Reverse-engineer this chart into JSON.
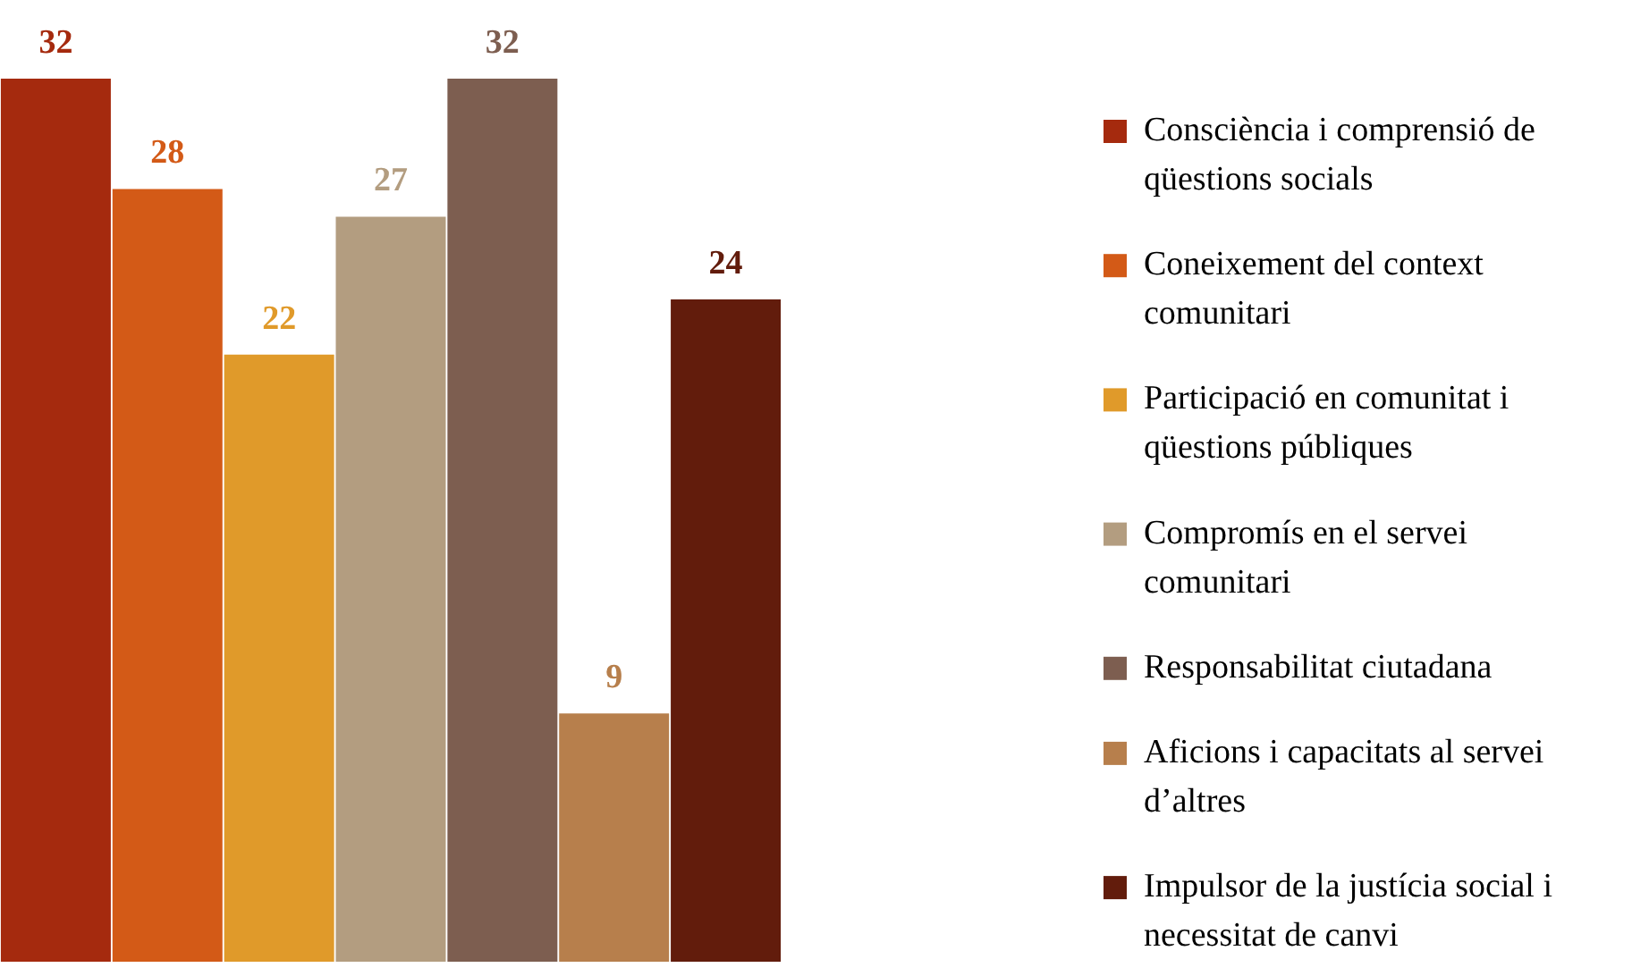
{
  "chart_data": {
    "type": "bar",
    "categories": [
      null
    ],
    "series": [
      {
        "name": "Consciència i comprensió de qüestions socials",
        "color": "#a52a0e",
        "values": [
          32
        ]
      },
      {
        "name": "Coneixement del context comunitari",
        "color": "#d35a17",
        "values": [
          28
        ]
      },
      {
        "name": "Participació en comunitat i qüestions públiques",
        "color": "#e09a2a",
        "values": [
          22
        ]
      },
      {
        "name": "Compromís en el servei comunitari",
        "color": "#b39d80",
        "values": [
          27
        ]
      },
      {
        "name": "Responsabilitat ciutadana",
        "color": "#7d5e50",
        "values": [
          32
        ]
      },
      {
        "name": "Aficions i capacitats al servei d’altres",
        "color": "#b77f4c",
        "values": [
          9
        ]
      },
      {
        "name": "Impulsor de la justícia social i necessitat de canvi",
        "color": "#621c0c",
        "values": [
          24
        ]
      }
    ],
    "ylim": [
      0,
      32
    ],
    "data_labels": true,
    "legend": "right",
    "tick_labels": false,
    "grid": false
  }
}
